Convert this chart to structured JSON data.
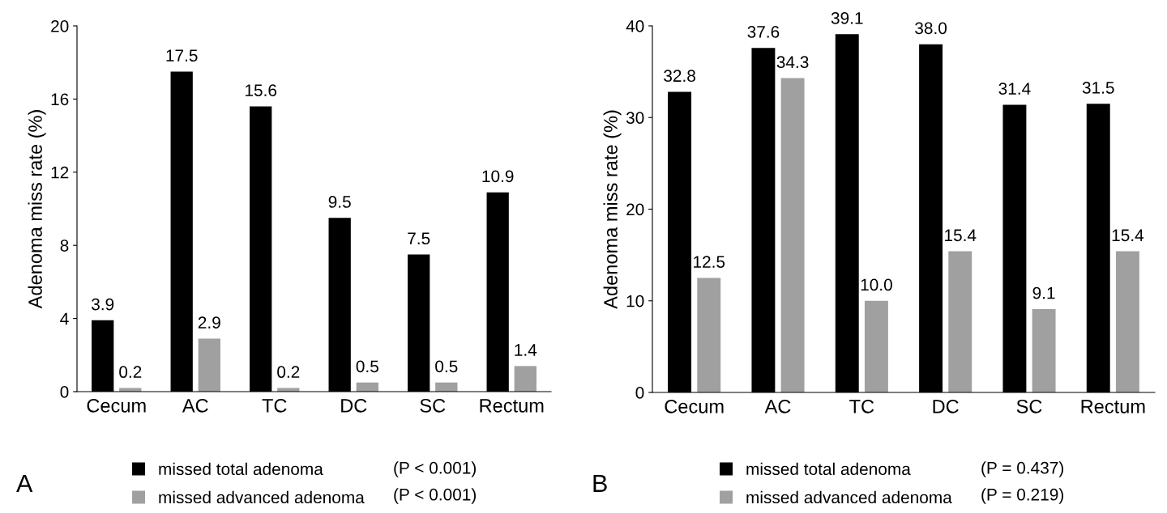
{
  "chart_data": [
    {
      "type": "bar",
      "ylabel": "Adenoma miss rate (%)",
      "categories": [
        "Cecum",
        "AC",
        "TC",
        "DC",
        "SC",
        "Rectum"
      ],
      "series": [
        {
          "name": "missed total adenoma",
          "color": "#000000",
          "values": [
            3.9,
            17.5,
            15.6,
            9.5,
            7.5,
            10.9
          ]
        },
        {
          "name": "missed advanced adenoma",
          "color": "#a0a0a0",
          "values": [
            0.2,
            2.9,
            0.2,
            0.5,
            0.5,
            1.4
          ]
        }
      ],
      "ylim": [
        0,
        20
      ],
      "yticks": [
        0,
        4,
        8,
        12,
        16,
        20
      ],
      "data_labels": true,
      "grid": false,
      "legend": "bottom",
      "annotations": [
        "A",
        "(P < 0.001)",
        "(P < 0.001)"
      ]
    },
    {
      "type": "bar",
      "ylabel": "Adenoma miss rate (%)",
      "categories": [
        "Cecum",
        "AC",
        "TC",
        "DC",
        "SC",
        "Rectum"
      ],
      "series": [
        {
          "name": "missed total adenoma",
          "color": "#000000",
          "values": [
            32.8,
            37.6,
            39.1,
            38.0,
            31.4,
            31.5
          ],
          "value_labels": [
            "32.8",
            "37.6",
            "39.1",
            "38.0",
            "31.4",
            "31.5"
          ]
        },
        {
          "name": "missed advanced adenoma",
          "color": "#a0a0a0",
          "values": [
            12.5,
            34.3,
            10.0,
            15.4,
            9.1,
            15.4
          ],
          "value_labels": [
            "12.5",
            "34.3",
            "10.0",
            "15.4",
            "9.1",
            "15.4"
          ]
        }
      ],
      "ylim": [
        0,
        40
      ],
      "yticks": [
        0,
        10,
        20,
        30,
        40
      ],
      "grid": false,
      "legend": "bottom",
      "annotations": [
        "B",
        "(P = 0.437)",
        "(P = 0.219)"
      ]
    }
  ]
}
